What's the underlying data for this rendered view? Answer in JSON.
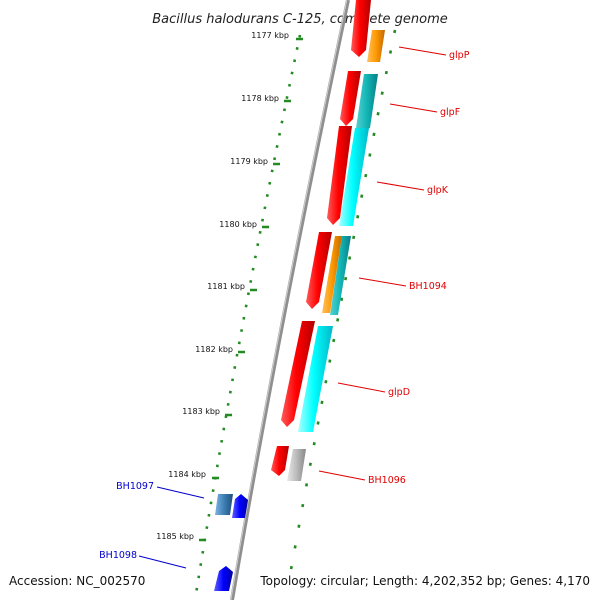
{
  "map": {
    "title": "Bacillus halodurans C-125, complete genome",
    "accession": "Accession: NC_002570",
    "topology": "Topology: circular; Length: 4,202,352 bp; Genes: 4,170"
  },
  "colors": {
    "cds": "#ff0000",
    "orange": "#ff9900",
    "cyan": "#00ffff",
    "teal": "#11b5b5",
    "gray": "#bbbbbb",
    "blue": "#0000ff",
    "steel": "#3d7fb5",
    "red_label": "#e00000",
    "blue_label": "#0000cc",
    "tick": "#228b22",
    "backbone": "#8f8f8f"
  },
  "ticks": [
    {
      "label": "1177 kbp"
    },
    {
      "label": "1178 kbp"
    },
    {
      "label": "1179 kbp"
    },
    {
      "label": "1180 kbp"
    },
    {
      "label": "1181 kbp"
    },
    {
      "label": "1182 kbp"
    },
    {
      "label": "1183 kbp"
    },
    {
      "label": "1184 kbp"
    },
    {
      "label": "1185 kbp"
    }
  ],
  "red_labels": [
    "glpP",
    "glpF",
    "glpK",
    "BH1094",
    "glpD",
    "BH1096"
  ],
  "blue_labels": [
    "BH1097",
    "BH1098"
  ]
}
